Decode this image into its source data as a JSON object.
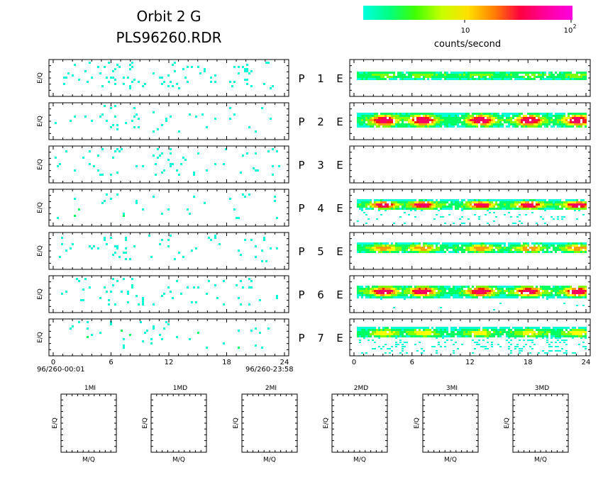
{
  "header": {
    "title_line1": "Orbit 2 G",
    "title_line2": "PLS96260.RDR"
  },
  "colorbar": {
    "label": "counts/second",
    "tick_10": "10",
    "tick_100_base": "10",
    "tick_100_exp": "2",
    "colors": [
      "#00ffe0",
      "#00ff80",
      "#40ff00",
      "#c8ff00",
      "#ffe000",
      "#ff8000",
      "#ff0040",
      "#ff00a0",
      "#ff00e0"
    ]
  },
  "axis_label_eq": "E/Q",
  "axis_label_mq": "M/Q",
  "left_xticks": [
    "0",
    "6",
    "12",
    "18",
    "24"
  ],
  "right_xticks": [
    "0",
    "6",
    "12",
    "18",
    "24"
  ],
  "time_start": "96/260-00:01",
  "time_end": "96/260-23:58",
  "panel_rows": [
    {
      "p": "P",
      "n": "1",
      "e": "E"
    },
    {
      "p": "P",
      "n": "2",
      "e": "E"
    },
    {
      "p": "P",
      "n": "3",
      "e": "E"
    },
    {
      "p": "P",
      "n": "4",
      "e": "E"
    },
    {
      "p": "P",
      "n": "5",
      "e": "E"
    },
    {
      "p": "P",
      "n": "6",
      "e": "E"
    },
    {
      "p": "P",
      "n": "7",
      "e": "E"
    }
  ],
  "bottom_panels": [
    "1MI",
    "1MD",
    "2MI",
    "2MD",
    "3MI",
    "3MD"
  ],
  "chart_data": {
    "type": "heatmap",
    "xlim": [
      0,
      24
    ],
    "grid": false,
    "left_panels": [
      {
        "panel": "P 1",
        "density": 0.14,
        "max_level": 1
      },
      {
        "panel": "P 2",
        "density": 0.1,
        "max_level": 1
      },
      {
        "panel": "P 3",
        "density": 0.1,
        "max_level": 1
      },
      {
        "panel": "P 4",
        "density": 0.06,
        "max_level": 2
      },
      {
        "panel": "P 5",
        "density": 0.07,
        "max_level": 1
      },
      {
        "panel": "P 6",
        "density": 0.08,
        "max_level": 1
      },
      {
        "panel": "P 7",
        "density": 0.08,
        "max_level": 2
      }
    ],
    "right_panels": [
      {
        "panel": "P 1",
        "band_center": 0.4,
        "band_width": 0.18,
        "peak_level": 2,
        "noise": 0.0
      },
      {
        "panel": "P 2",
        "band_center": 0.45,
        "band_width": 0.35,
        "peak_level": 6,
        "noise": 0.0
      },
      {
        "panel": "P 3",
        "band_center": 0.0,
        "band_width": 0.0,
        "peak_level": 0,
        "noise": 0.0
      },
      {
        "panel": "P 4",
        "band_center": 0.4,
        "band_width": 0.2,
        "peak_level": 6,
        "noise": 0.25
      },
      {
        "panel": "P 5",
        "band_center": 0.4,
        "band_width": 0.22,
        "peak_level": 4,
        "noise": 0.0
      },
      {
        "panel": "P 6",
        "band_center": 0.4,
        "band_width": 0.28,
        "peak_level": 6,
        "noise": 0.05
      },
      {
        "panel": "P 7",
        "band_center": 0.35,
        "band_width": 0.22,
        "peak_level": 3,
        "noise": 0.45
      }
    ],
    "hotspot_hours": [
      3,
      7,
      13,
      18,
      23
    ]
  }
}
